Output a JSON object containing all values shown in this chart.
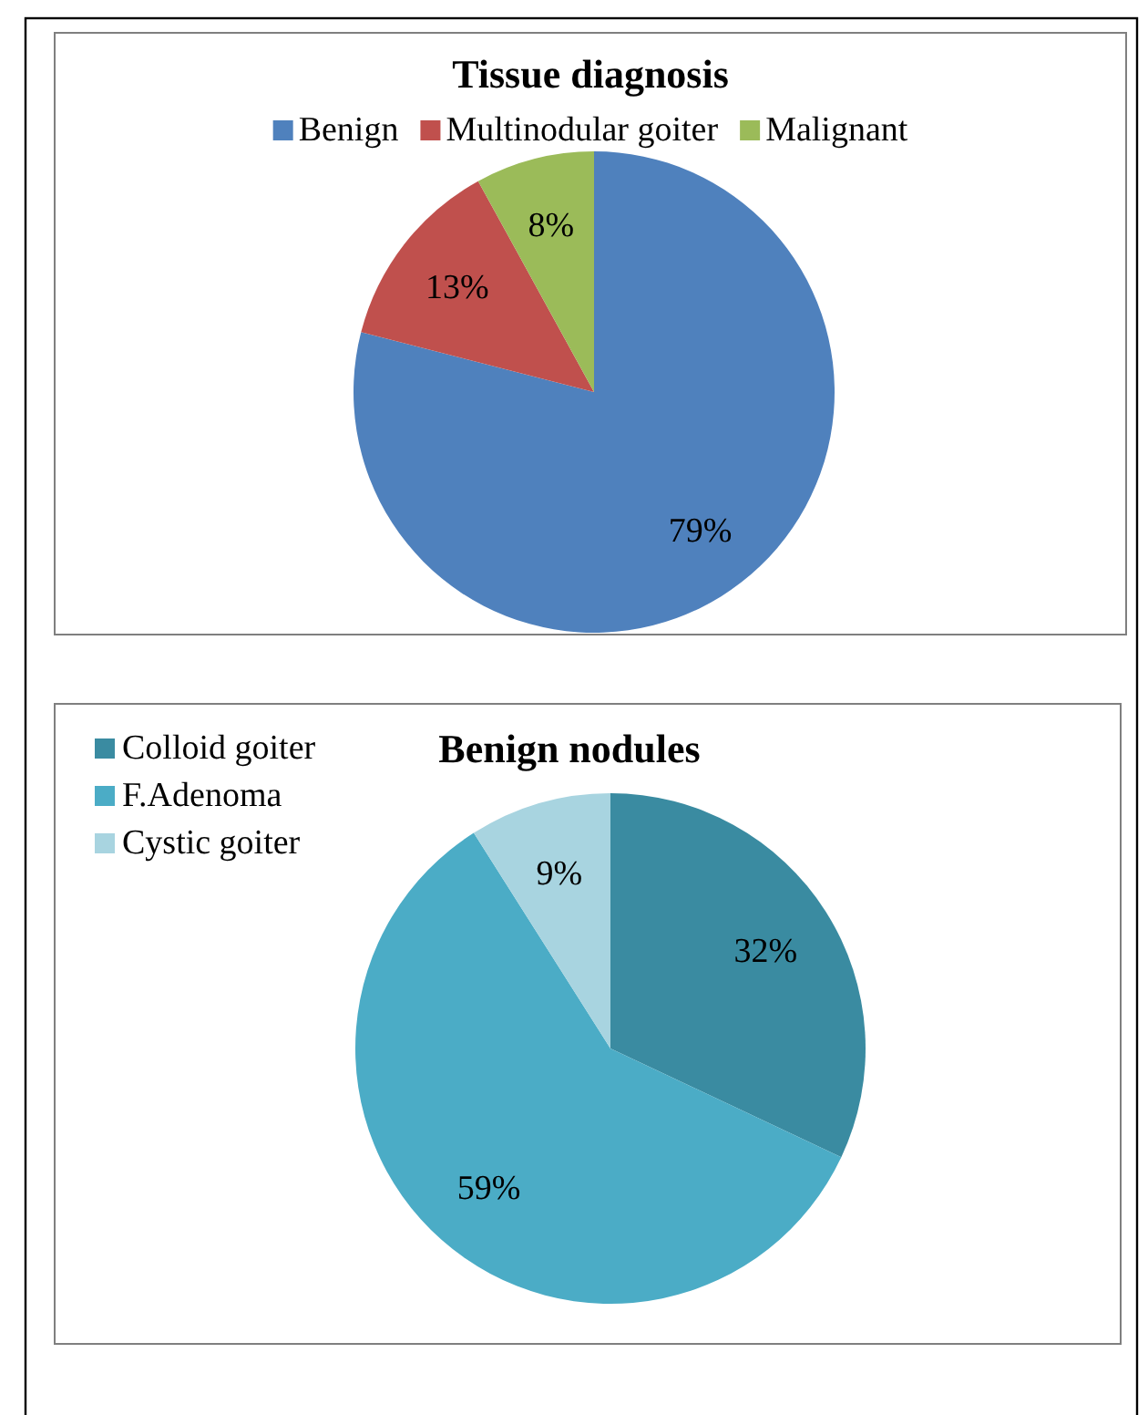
{
  "chart_data": [
    {
      "type": "pie",
      "title": "Tissue diagnosis",
      "categories": [
        "Benign",
        "Multinodular goiter",
        "Malignant"
      ],
      "values": [
        79,
        13,
        8
      ],
      "colors": [
        "#4f81bd",
        "#c0504d",
        "#9bbb59"
      ],
      "value_labels": [
        "79%",
        "13%",
        "8%"
      ],
      "legend": "top"
    },
    {
      "type": "pie",
      "title": "Benign nodules",
      "categories": [
        "Colloid goiter",
        "F.Adenoma",
        "Cystic goiter"
      ],
      "values": [
        32,
        59,
        9
      ],
      "colors": [
        "#3a8ba1",
        "#4bacc6",
        "#a8d4e0"
      ],
      "value_labels": [
        "32%",
        "59%",
        "9%"
      ],
      "legend": "top left"
    }
  ]
}
